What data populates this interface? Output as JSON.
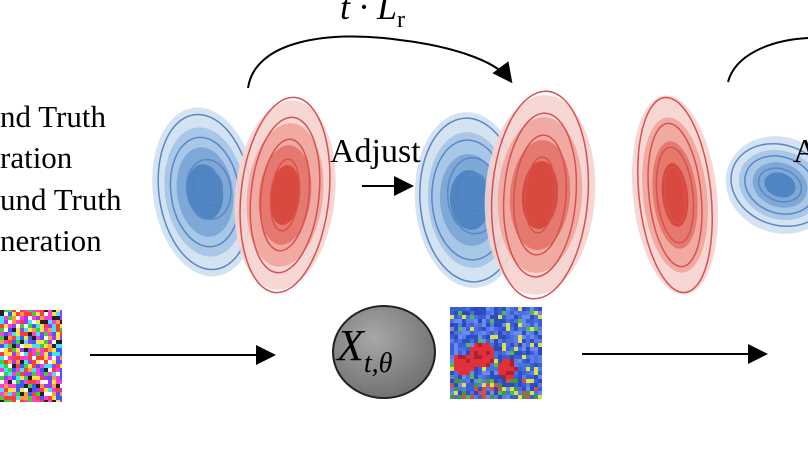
{
  "legend": {
    "lines": [
      "nd Truth",
      "ration",
      "und Truth",
      "neration"
    ]
  },
  "labels": {
    "adjust_1": "Adjust",
    "adjust_2": "A",
    "loss_main": "t · L",
    "loss_sub": "r",
    "node_main": "X",
    "node_sub": "t,θ"
  },
  "colors": {
    "blue_fill": "#3b7bc0",
    "blue_line": "#5c86c4",
    "red_fill": "#d9453b",
    "red_line": "#d95050",
    "node_fill": "#888888"
  }
}
